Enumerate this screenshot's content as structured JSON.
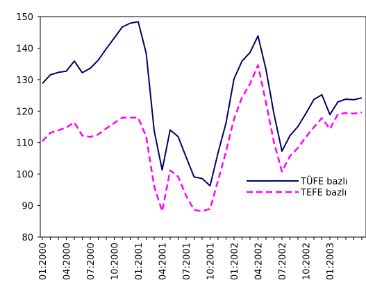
{
  "chart_data": {
    "type": "line",
    "title": "",
    "xlabel": "",
    "ylabel": "",
    "ylim": [
      80,
      150
    ],
    "yticks": [
      80,
      90,
      100,
      110,
      120,
      130,
      140,
      150
    ],
    "grid": false,
    "legend_position": "bottom-right",
    "x": [
      "01:2000",
      "02:2000",
      "03:2000",
      "04:2000",
      "05:2000",
      "06:2000",
      "07:2000",
      "08:2000",
      "09:2000",
      "10:2000",
      "11:2000",
      "12:2000",
      "01:2001",
      "02:2001",
      "03:2001",
      "04:2001",
      "05:2001",
      "06:2001",
      "07:2001",
      "08:2001",
      "09:2001",
      "10:2001",
      "11:2001",
      "12:2001",
      "01:2002",
      "02:2002",
      "03:2002",
      "04:2002",
      "05:2002",
      "06:2002",
      "07:2002",
      "08:2002",
      "09:2002",
      "10:2002",
      "11:2002",
      "12:2002",
      "01:2003",
      "02:2003",
      "03:2003",
      "04:2003",
      "05:2003"
    ],
    "x_tick_labels": [
      "01:2000",
      "04:2000",
      "07:2000",
      "10:2000",
      "01:2001",
      "04:2001",
      "07:2001",
      "10:2001",
      "01:2002",
      "04:2002",
      "07:2002",
      "10:2002",
      "01:2003"
    ],
    "series": [
      {
        "name": "TÜFE bazlı",
        "color": "#000066",
        "dash": "solid",
        "values": [
          128.8,
          131.5,
          132.3,
          132.7,
          135.9,
          132.2,
          133.6,
          136.2,
          139.8,
          143.2,
          146.7,
          147.9,
          148.4,
          138.4,
          113.8,
          101.3,
          114.0,
          111.9,
          105.4,
          99.1,
          98.6,
          96.3,
          106.8,
          116.3,
          130.3,
          135.9,
          138.6,
          143.9,
          133.2,
          119.1,
          107.3,
          112.2,
          115.1,
          119.3,
          123.7,
          125.2,
          118.9,
          122.9,
          123.8,
          123.6,
          124.2
        ]
      },
      {
        "name": "TEFE bazlı",
        "color": "#ff00ff",
        "dash": "dashed",
        "values": [
          110.4,
          113.1,
          113.9,
          114.8,
          116.4,
          112.2,
          111.8,
          112.6,
          114.5,
          116.2,
          117.9,
          117.9,
          117.9,
          111.9,
          96.1,
          88.2,
          101.2,
          99.2,
          93.1,
          88.6,
          88.2,
          89.0,
          97.9,
          107.2,
          117.5,
          124.4,
          128.6,
          134.6,
          122.7,
          110.1,
          100.8,
          105.7,
          108.3,
          111.8,
          114.9,
          117.8,
          114.3,
          119.0,
          119.4,
          119.2,
          119.6
        ]
      }
    ]
  }
}
